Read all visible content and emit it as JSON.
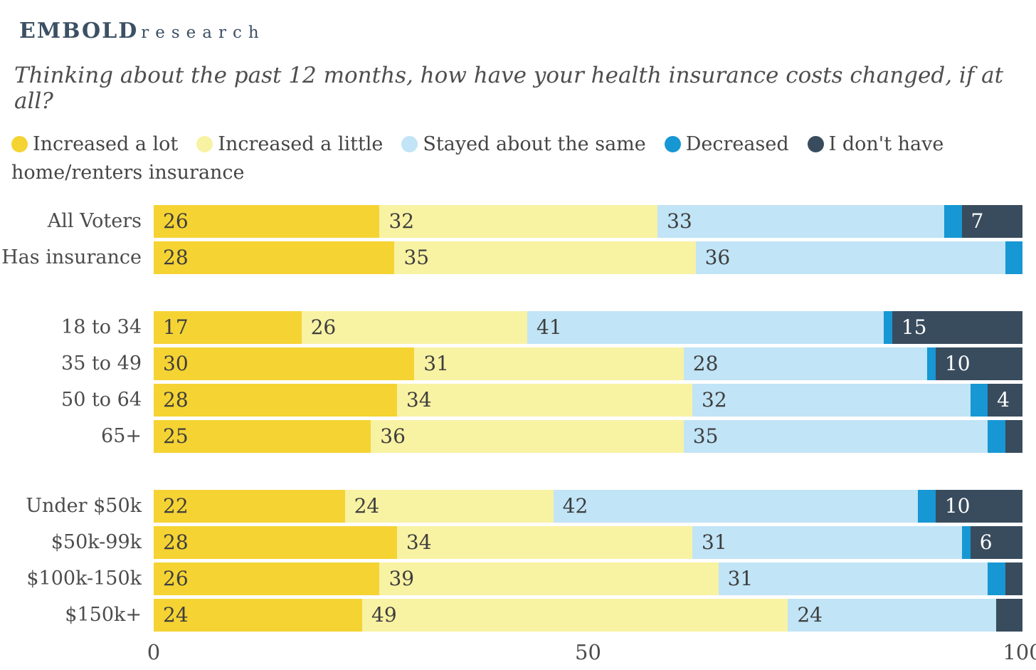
{
  "logo": {
    "primary": "EMBOLD",
    "secondary": "research"
  },
  "title": "Thinking about the past 12 months, how have your health insurance costs changed, if at all?",
  "colors": {
    "brand_navy": "#3c5064",
    "increased_a_lot": "#F5D333",
    "increased_a_little": "#F8F2A3",
    "stayed_same": "#C1E4F6",
    "decreased": "#1797D4",
    "no_insurance": "#394C5E",
    "label_dark": "#3E3E3E",
    "label_light": "#FFFFFF"
  },
  "chart_data": {
    "type": "bar",
    "orientation": "horizontal",
    "stacked": true,
    "x_axis": {
      "ticks": [
        "0",
        "50",
        "100"
      ],
      "min": 0,
      "max": 100
    },
    "min_value_for_label": 4,
    "series_names": [
      "Increased a lot",
      "Increased a little",
      "Stayed about the same",
      "Decreased",
      "I don't have home/renters insurance"
    ],
    "series_colors": [
      "#F5D333",
      "#F8F2A3",
      "#C1E4F6",
      "#1797D4",
      "#394C5E"
    ],
    "series_label_colors": [
      "#3E3E3E",
      "#3E3E3E",
      "#3E3E3E",
      "#FFFFFF",
      "#FFFFFF"
    ],
    "legend": [
      {
        "label": "Increased a lot",
        "color": "#F5D333"
      },
      {
        "label": "Increased a little",
        "color": "#F8F2A3"
      },
      {
        "label": "Stayed about the same",
        "color": "#C1E4F6"
      },
      {
        "label": "Decreased",
        "color": "#1797D4"
      },
      {
        "label": "I don't have home/renters insurance",
        "color": "#394C5E"
      }
    ],
    "groups": [
      {
        "rows": [
          {
            "label": "All Voters",
            "values": [
              26,
              32,
              33,
              2,
              7
            ]
          },
          {
            "label": "Has insurance",
            "values": [
              28,
              35,
              36,
              2,
              0
            ]
          }
        ]
      },
      {
        "rows": [
          {
            "label": "18 to 34",
            "values": [
              17,
              26,
              41,
              1,
              15
            ]
          },
          {
            "label": "35 to 49",
            "values": [
              30,
              31,
              28,
              1,
              10
            ]
          },
          {
            "label": "50 to 64",
            "values": [
              28,
              34,
              32,
              2,
              4
            ]
          },
          {
            "label": "65+",
            "values": [
              25,
              36,
              35,
              2,
              2
            ]
          }
        ]
      },
      {
        "rows": [
          {
            "label": "Under $50k",
            "values": [
              22,
              24,
              42,
              2,
              10
            ]
          },
          {
            "label": "$50k-99k",
            "values": [
              28,
              34,
              31,
              1,
              6
            ]
          },
          {
            "label": "$100k-150k",
            "values": [
              26,
              39,
              31,
              2,
              2
            ]
          },
          {
            "label": "$150k+",
            "values": [
              24,
              49,
              24,
              0,
              3
            ]
          }
        ]
      }
    ]
  }
}
